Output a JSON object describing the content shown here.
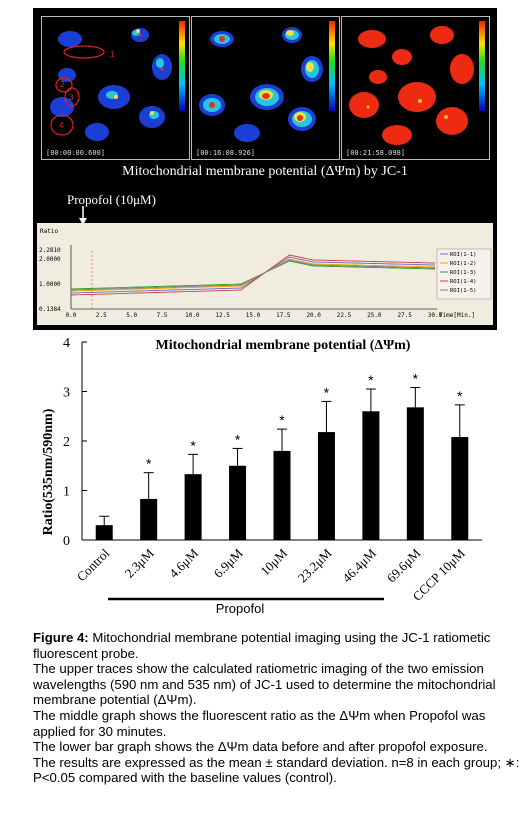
{
  "micrographs": [
    {
      "timestamp": "[00:00:00.600]",
      "rois": [
        "1",
        "2",
        "3",
        "4"
      ]
    },
    {
      "timestamp": "[00:16:08.926]"
    },
    {
      "timestamp": "[00:21:58.098]"
    }
  ],
  "colors": {
    "bar": "#000000",
    "panel_bg": "#000000",
    "trace_bg": "#f0ede0",
    "trace_lines": [
      "#6b6bd0",
      "#f0a000",
      "#30a030",
      "#d04040",
      "#808080"
    ]
  },
  "micro_title": "Mitochondrial membrane potential (ΔΨm) by JC-1",
  "propofol_label": "Propofol (10μM)",
  "trace_chart": {
    "type": "line",
    "ylabel": "Ratio",
    "y_ticks": [
      "2.2810",
      "2.0000",
      "1.0000",
      "0.1384"
    ],
    "x_ticks": [
      "0.0",
      "2.5",
      "5.0",
      "7.5",
      "10.0",
      "12.5",
      "15.0",
      "17.5",
      "20.0",
      "22.5",
      "25.0",
      "27.5",
      "30.0"
    ],
    "xlabel": "Time[Min.]",
    "legend": [
      "ROI(1-1)",
      "ROI(1-2)",
      "ROI(1-3)",
      "ROI(1-4)",
      "ROI(1-5)"
    ]
  },
  "chart_data": {
    "type": "bar",
    "title": "Mitochondrial membrane potential (ΔΨm)",
    "ylabel": "Ratio(535nm/590nm)",
    "xlabel": "",
    "ylim": [
      0,
      4
    ],
    "y_ticks": [
      "0",
      "1",
      "2",
      "3",
      "4"
    ],
    "categories": [
      "Control",
      "2.3μM",
      "4.6μM",
      "6.9μM",
      "10μM",
      "23.2μM",
      "46.4μM",
      "69.6μM",
      "CCCP 10μM"
    ],
    "values": [
      0.3,
      0.83,
      1.33,
      1.5,
      1.8,
      2.18,
      2.6,
      2.68,
      2.08
    ],
    "errors": [
      0.18,
      0.53,
      0.4,
      0.35,
      0.44,
      0.62,
      0.45,
      0.4,
      0.65
    ],
    "significance": [
      "",
      "*",
      "*",
      "*",
      "*",
      "*",
      "*",
      "*",
      "*"
    ],
    "group_label": "Propofol"
  },
  "caption": {
    "figure_label": "Figure 4:",
    "lines": [
      "Mitochondrial membrane potential imaging using the JC-1 ratiometic fluorescent probe.",
      "The upper traces show the calculated ratiometric imaging of the two emission wavelengths (590 nm and 535 nm) of JC-1 used to determine the mitochondrial membrane potential (ΔΨm).",
      "The middle graph shows the fluorescent ratio as the ΔΨm when Propofol was applied for 30 minutes.",
      "The lower bar graph shows the ΔΨm data before and after propofol exposure.",
      "The results are expressed as the mean ± standard deviation. n=8 in each group; ∗: P<0.05 compared with the baseline values (control)."
    ]
  }
}
